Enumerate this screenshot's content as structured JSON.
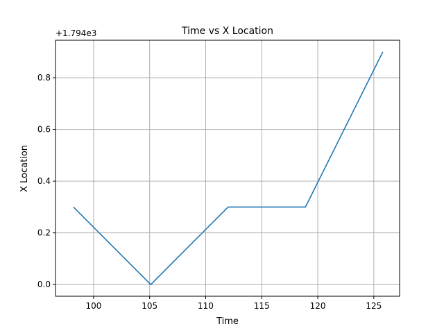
{
  "chart_data": {
    "type": "line",
    "title": "Time vs X Location",
    "xlabel": "Time",
    "ylabel": "X Location",
    "offset_label": "+1.794e3",
    "xlim": [
      96.6,
      127.3
    ],
    "ylim": [
      -0.045,
      0.945
    ],
    "xticks": [
      100,
      105,
      110,
      115,
      120,
      125
    ],
    "yticks": [
      0.0,
      0.2,
      0.4,
      0.6,
      0.8
    ],
    "ytick_labels": [
      "0.0",
      "0.2",
      "0.4",
      "0.6",
      "0.8"
    ],
    "grid": true,
    "series": [
      {
        "color": "#1f77b4",
        "x": [
          98.2,
          105.1,
          112.0,
          118.9,
          125.8
        ],
        "y": [
          0.3,
          0.0,
          0.3,
          0.3,
          0.9
        ]
      }
    ]
  }
}
